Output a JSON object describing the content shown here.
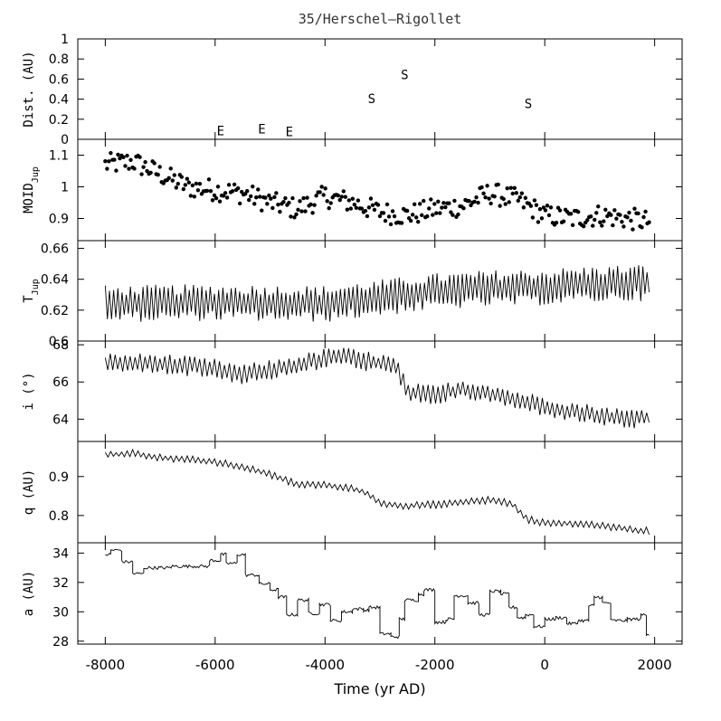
{
  "chart_data": {
    "title": "35/Herschel–Rigollet",
    "xlabel": "Time (yr AD)",
    "xlim": [
      -8500,
      2500
    ],
    "xticks": [
      -8000,
      -6000,
      -4000,
      -2000,
      0,
      2000
    ],
    "xtick_labels": [
      "-8000",
      "-6000",
      "-4000",
      "-2000",
      "0",
      "2000"
    ],
    "panels": [
      {
        "id": "dist",
        "type": "scatter",
        "ylabel": "Dist. (AU)",
        "ylim": [
          0,
          1
        ],
        "yticks": [
          0,
          0.2,
          0.4,
          0.6,
          0.8,
          1
        ],
        "ytick_labels": [
          "0",
          "0.2",
          "0.4",
          "0.6",
          "0.8",
          "1"
        ],
        "labels": [
          {
            "text": "E",
            "x": -5900,
            "y": 0.04
          },
          {
            "text": "E",
            "x": -5150,
            "y": 0.06
          },
          {
            "text": "E",
            "x": -4650,
            "y": 0.03
          },
          {
            "text": "S",
            "x": -3150,
            "y": 0.36
          },
          {
            "text": "S",
            "x": -2550,
            "y": 0.6
          },
          {
            "text": "S",
            "x": -300,
            "y": 0.31
          }
        ]
      },
      {
        "id": "moid",
        "type": "scatter",
        "ylabel": "MOID",
        "ylabel_sub": "Jup",
        "ylim": [
          0.83,
          1.15
        ],
        "yticks": [
          0.9,
          1,
          1.1
        ],
        "ytick_labels": [
          "0.9",
          "1",
          "1.1"
        ],
        "keypoints": [
          [
            -8000,
            1.07
          ],
          [
            -7500,
            1.08
          ],
          [
            -7000,
            1.04
          ],
          [
            -6500,
            1.0
          ],
          [
            -6000,
            0.99
          ],
          [
            -5500,
            0.98
          ],
          [
            -5000,
            0.95
          ],
          [
            -4500,
            0.93
          ],
          [
            -4000,
            0.97
          ],
          [
            -3500,
            0.95
          ],
          [
            -3000,
            0.92
          ],
          [
            -2500,
            0.91
          ],
          [
            -2000,
            0.93
          ],
          [
            -1500,
            0.94
          ],
          [
            -1000,
            0.98
          ],
          [
            -500,
            0.96
          ],
          [
            0,
            0.91
          ],
          [
            500,
            0.9
          ],
          [
            1000,
            0.91
          ],
          [
            1500,
            0.9
          ],
          [
            1900,
            0.89
          ]
        ],
        "amplitude": 0.035,
        "n_points": 300
      },
      {
        "id": "tjup",
        "type": "line",
        "ylabel": "T",
        "ylabel_sub": "Jup",
        "ylim": [
          0.6,
          0.665
        ],
        "yticks": [
          0.6,
          0.62,
          0.64,
          0.66
        ],
        "ytick_labels": [
          "0.6",
          "0.62",
          "0.64",
          "0.66"
        ],
        "keypoints": [
          [
            -8000,
            0.624
          ],
          [
            -6000,
            0.625
          ],
          [
            -4000,
            0.624
          ],
          [
            -3000,
            0.628
          ],
          [
            -2000,
            0.632
          ],
          [
            -1000,
            0.634
          ],
          [
            0,
            0.635
          ],
          [
            1000,
            0.637
          ],
          [
            1900,
            0.638
          ]
        ],
        "amplitude": 0.012,
        "n_points": 260
      },
      {
        "id": "incl",
        "type": "line",
        "ylabel": "i (°)",
        "ylim": [
          62.8,
          68.2
        ],
        "yticks": [
          64,
          66,
          68
        ],
        "ytick_labels": [
          "64",
          "66",
          "68"
        ],
        "keypoints": [
          [
            -8000,
            67.0
          ],
          [
            -7000,
            67.0
          ],
          [
            -6000,
            66.7
          ],
          [
            -5500,
            66.4
          ],
          [
            -4500,
            66.9
          ],
          [
            -3800,
            67.4
          ],
          [
            -3000,
            67.0
          ],
          [
            -2700,
            66.8
          ],
          [
            -2500,
            65.4
          ],
          [
            -2000,
            65.3
          ],
          [
            -1500,
            65.6
          ],
          [
            -1000,
            65.4
          ],
          [
            -500,
            65.0
          ],
          [
            0,
            64.7
          ],
          [
            500,
            64.4
          ],
          [
            1000,
            64.2
          ],
          [
            1500,
            64.0
          ],
          [
            1900,
            64.1
          ]
        ],
        "amplitude": 0.55,
        "n_points": 220
      },
      {
        "id": "q",
        "type": "line",
        "ylabel": "q (AU)",
        "ylim": [
          0.73,
          0.99
        ],
        "yticks": [
          0.8,
          0.9
        ],
        "ytick_labels": [
          "0.8",
          "0.9"
        ],
        "keypoints": [
          [
            -8000,
            0.955
          ],
          [
            -7500,
            0.96
          ],
          [
            -7000,
            0.948
          ],
          [
            -6500,
            0.944
          ],
          [
            -6000,
            0.937
          ],
          [
            -5500,
            0.925
          ],
          [
            -5000,
            0.905
          ],
          [
            -4500,
            0.88
          ],
          [
            -4000,
            0.878
          ],
          [
            -3500,
            0.87
          ],
          [
            -3200,
            0.855
          ],
          [
            -3000,
            0.83
          ],
          [
            -2500,
            0.825
          ],
          [
            -2000,
            0.828
          ],
          [
            -1500,
            0.833
          ],
          [
            -1000,
            0.84
          ],
          [
            -600,
            0.83
          ],
          [
            -300,
            0.79
          ],
          [
            0,
            0.78
          ],
          [
            500,
            0.78
          ],
          [
            1000,
            0.775
          ],
          [
            1500,
            0.765
          ],
          [
            1900,
            0.76
          ]
        ],
        "amplitude": 0.01,
        "n_points": 200
      },
      {
        "id": "a",
        "type": "line",
        "ylabel": "a (AU)",
        "ylim": [
          27.8,
          34.7
        ],
        "yticks": [
          28,
          30,
          32,
          34
        ],
        "ytick_labels": [
          "28",
          "30",
          "32",
          "34"
        ],
        "steps": [
          [
            -8000,
            33.9
          ],
          [
            -7900,
            34.2
          ],
          [
            -7700,
            33.4
          ],
          [
            -7500,
            32.6
          ],
          [
            -7300,
            33.0
          ],
          [
            -7000,
            33.0
          ],
          [
            -6800,
            33.1
          ],
          [
            -6300,
            33.1
          ],
          [
            -6100,
            33.5
          ],
          [
            -5900,
            33.9
          ],
          [
            -5800,
            33.3
          ],
          [
            -5600,
            33.9
          ],
          [
            -5450,
            32.5
          ],
          [
            -5200,
            31.9
          ],
          [
            -5000,
            31.5
          ],
          [
            -4850,
            31.0
          ],
          [
            -4700,
            29.8
          ],
          [
            -4500,
            30.8
          ],
          [
            -4300,
            29.9
          ],
          [
            -4100,
            30.5
          ],
          [
            -3900,
            29.4
          ],
          [
            -3700,
            30.0
          ],
          [
            -3500,
            30.2
          ],
          [
            -3300,
            30.1
          ],
          [
            -3200,
            30.3
          ],
          [
            -3000,
            28.5
          ],
          [
            -2800,
            28.3
          ],
          [
            -2650,
            29.5
          ],
          [
            -2550,
            30.8
          ],
          [
            -2300,
            31.2
          ],
          [
            -2200,
            31.5
          ],
          [
            -2000,
            29.3
          ],
          [
            -1800,
            29.5
          ],
          [
            -1650,
            31.1
          ],
          [
            -1400,
            30.6
          ],
          [
            -1200,
            29.8
          ],
          [
            -1000,
            31.4
          ],
          [
            -800,
            31.2
          ],
          [
            -650,
            30.3
          ],
          [
            -500,
            29.6
          ],
          [
            -350,
            29.8
          ],
          [
            -200,
            29.0
          ],
          [
            0,
            29.5
          ],
          [
            200,
            29.6
          ],
          [
            400,
            29.2
          ],
          [
            600,
            29.4
          ],
          [
            800,
            30.4
          ],
          [
            900,
            31.0
          ],
          [
            1050,
            30.6
          ],
          [
            1200,
            29.4
          ],
          [
            1500,
            29.5
          ],
          [
            1750,
            29.8
          ],
          [
            1850,
            28.5
          ]
        ],
        "end_x": 1900
      }
    ]
  }
}
